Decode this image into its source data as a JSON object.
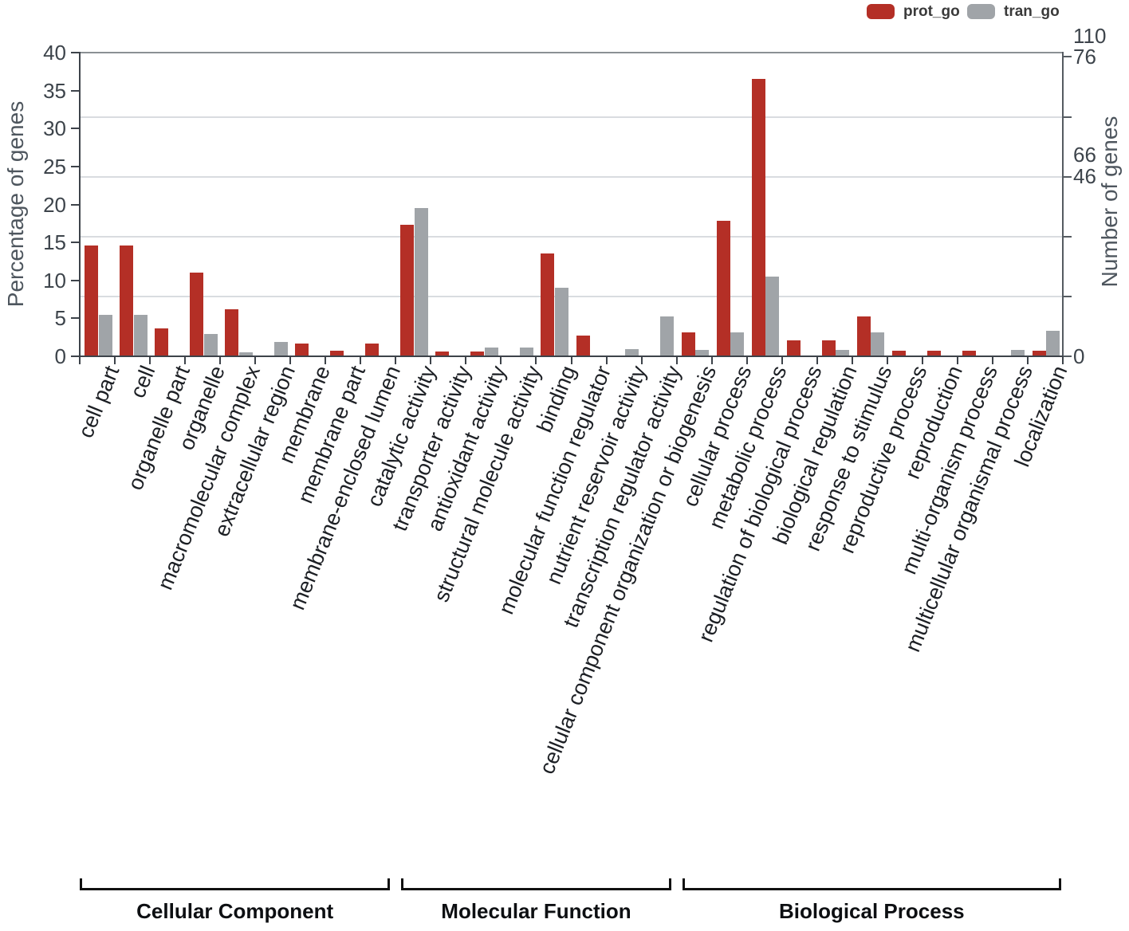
{
  "chart_data": {
    "type": "bar",
    "legend": [
      {
        "label": "prot_go",
        "color": "#b42f26"
      },
      {
        "label": "tran_go",
        "color": "#a0a4a8"
      }
    ],
    "left_axis": {
      "title": "Percentage of genes",
      "ticks": [
        0,
        5,
        10,
        15,
        20,
        25,
        30,
        35,
        40
      ],
      "range": [
        0,
        40
      ]
    },
    "right_axis": {
      "title": "Number of genes",
      "labels": [
        "110",
        "76",
        "66",
        "46",
        "0"
      ]
    },
    "categories": [
      "cell part",
      "cell",
      "organelle part",
      "organelle",
      "macromolecular complex",
      "extracellular region",
      "membrane",
      "membrane part",
      "membrane-enclosed lumen",
      "catalytic activity",
      "transporter activity",
      "antioxidant activity",
      "structural molecule activity",
      "binding",
      "molecular function regulator",
      "nutrient reservoir activity",
      "transcription regulator activity",
      "cellular component organization or biogenesis",
      "cellular process",
      "metabolic process",
      "regulation of biological process",
      "biological regulation",
      "response to stimulus",
      "reproductive process",
      "reproduction",
      "multi-organism process",
      "multicellular organismal process",
      "localization"
    ],
    "series": [
      {
        "name": "prot_go",
        "color": "#b42f26",
        "values": [
          14.6,
          14.6,
          3.7,
          11.0,
          6.2,
          0,
          1.7,
          0.7,
          1.7,
          17.3,
          0.6,
          0.6,
          0,
          13.5,
          2.7,
          0,
          0,
          3.1,
          17.8,
          36.5,
          2.1,
          2.1,
          5.3,
          0.7,
          0.7,
          0.7,
          0,
          0.7
        ]
      },
      {
        "name": "tran_go",
        "color": "#a0a4a8",
        "values": [
          5.5,
          5.5,
          0,
          2.9,
          0.5,
          1.9,
          0,
          0,
          0,
          19.5,
          0,
          1.2,
          1.2,
          9.0,
          0,
          0.9,
          5.3,
          0.8,
          3.2,
          10.5,
          0,
          0.8,
          3.2,
          0,
          0,
          0,
          0.8,
          3.4
        ]
      }
    ],
    "groups": [
      {
        "label": "Cellular Component",
        "start": 0,
        "end": 8
      },
      {
        "label": "Molecular Function",
        "start": 9,
        "end": 16
      },
      {
        "label": "Biological Process",
        "start": 17,
        "end": 27
      }
    ],
    "grid": true,
    "legend_position": "top-right"
  }
}
